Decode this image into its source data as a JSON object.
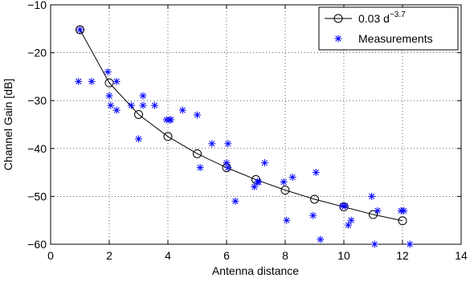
{
  "chart_data": {
    "type": "scatter",
    "xlabel": "Antenna distance",
    "ylabel": "Channel Gain [dB]",
    "xlim": [
      0,
      14
    ],
    "ylim": [
      -60,
      -10
    ],
    "xticks": [
      "0",
      "2",
      "4",
      "6",
      "8",
      "10",
      "12",
      "14"
    ],
    "yticks": [
      "−60",
      "−50",
      "−40",
      "−30",
      "−20",
      "−10"
    ],
    "grid": true,
    "legend_position": "top-right",
    "colors": {
      "fit": "#000000",
      "measurements": "#0000ff"
    },
    "series": [
      {
        "name": "0.03 d",
        "name_superscript": "−3.7",
        "kind": "line-with-circle-markers",
        "x": [
          1,
          2,
          3,
          4,
          5,
          6,
          7,
          8,
          9,
          10,
          11,
          12
        ],
        "y": [
          -15.2,
          -26.3,
          -32.9,
          -37.5,
          -41.1,
          -44.0,
          -46.5,
          -48.7,
          -50.6,
          -52.2,
          -53.8,
          -55.1
        ]
      },
      {
        "name": "Measurements",
        "kind": "asterisk-markers",
        "x": [
          1.0,
          0.95,
          1.4,
          1.95,
          2.0,
          2.05,
          2.25,
          2.25,
          2.75,
          3.0,
          3.15,
          3.15,
          3.55,
          3.95,
          4.05,
          4.1,
          4.5,
          5.0,
          5.1,
          5.5,
          6.0,
          6.05,
          6.05,
          6.3,
          6.95,
          7.05,
          7.1,
          7.3,
          7.95,
          8.05,
          8.25,
          8.95,
          9.05,
          9.2,
          9.95,
          10.05,
          10.15,
          10.25,
          10.95,
          11.05,
          11.15,
          11.95,
          12.05,
          12.25
        ],
        "y": [
          -15.2,
          -26,
          -26,
          -24,
          -29,
          -31,
          -32,
          -26,
          -31,
          -38,
          -31,
          -29,
          -31,
          -34,
          -34,
          -34,
          -32,
          -33,
          -44,
          -39,
          -43,
          -44,
          -39,
          -51,
          -48,
          -47,
          -47,
          -43,
          -47,
          -55,
          -46,
          -54,
          -45,
          -59,
          -52,
          -52,
          -56,
          -55,
          -50,
          -60,
          -53,
          -53,
          -53,
          -60
        ]
      }
    ]
  }
}
